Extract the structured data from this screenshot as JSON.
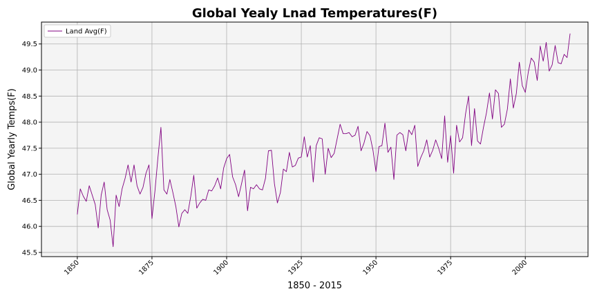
{
  "chart_data": {
    "type": "line",
    "title": "Global Yealy Lnad Temperatures(F)",
    "xlabel": "1850 - 2015",
    "ylabel": "Global Yearly Temps(F)",
    "xlim": [
      1838,
      2021
    ],
    "ylim": [
      45.42,
      49.92
    ],
    "x_ticks": [
      1850,
      1875,
      1900,
      1925,
      1950,
      1975,
      2000
    ],
    "x_tick_labels": [
      "1850",
      "1875",
      "1900",
      "1925",
      "1950",
      "1975",
      "2000"
    ],
    "y_ticks": [
      45.5,
      46.0,
      46.5,
      47.0,
      47.5,
      48.0,
      48.5,
      49.0,
      49.5
    ],
    "y_tick_labels": [
      "45.5",
      "46.0",
      "46.5",
      "47.0",
      "47.5",
      "48.0",
      "48.5",
      "49.0",
      "49.5"
    ],
    "grid": true,
    "legend_position": "top-left",
    "colors": {
      "series": "#800080",
      "plot_background": "#f4f4f4",
      "grid": "#b0b0b0"
    },
    "series": [
      {
        "name": "Land Avg(F)",
        "x": [
          1850,
          1851,
          1852,
          1853,
          1854,
          1855,
          1856,
          1857,
          1858,
          1859,
          1860,
          1861,
          1862,
          1863,
          1864,
          1865,
          1866,
          1867,
          1868,
          1869,
          1870,
          1871,
          1872,
          1873,
          1874,
          1875,
          1876,
          1877,
          1878,
          1879,
          1880,
          1881,
          1882,
          1883,
          1884,
          1885,
          1886,
          1887,
          1888,
          1889,
          1890,
          1891,
          1892,
          1893,
          1894,
          1895,
          1896,
          1897,
          1898,
          1899,
          1900,
          1901,
          1902,
          1903,
          1904,
          1905,
          1906,
          1907,
          1908,
          1909,
          1910,
          1911,
          1912,
          1913,
          1914,
          1915,
          1916,
          1917,
          1918,
          1919,
          1920,
          1921,
          1922,
          1923,
          1924,
          1925,
          1926,
          1927,
          1928,
          1929,
          1930,
          1931,
          1932,
          1933,
          1934,
          1935,
          1936,
          1937,
          1938,
          1939,
          1940,
          1941,
          1942,
          1943,
          1944,
          1945,
          1946,
          1947,
          1948,
          1949,
          1950,
          1951,
          1952,
          1953,
          1954,
          1955,
          1956,
          1957,
          1958,
          1959,
          1960,
          1961,
          1962,
          1963,
          1964,
          1965,
          1966,
          1967,
          1968,
          1969,
          1970,
          1971,
          1972,
          1973,
          1974,
          1975,
          1976,
          1977,
          1978,
          1979,
          1980,
          1981,
          1982,
          1983,
          1984,
          1985,
          1986,
          1987,
          1988,
          1989,
          1990,
          1991,
          1992,
          1993,
          1994,
          1995,
          1996,
          1997,
          1998,
          1999,
          2000,
          2001,
          2002,
          2003,
          2004,
          2005,
          2006,
          2007,
          2008,
          2009,
          2010,
          2011,
          2012,
          2013,
          2014,
          2015
        ],
        "values": [
          46.23,
          46.72,
          46.58,
          46.48,
          46.78,
          46.6,
          46.42,
          45.97,
          46.6,
          46.85,
          46.32,
          46.12,
          45.61,
          46.6,
          46.38,
          46.72,
          46.92,
          47.18,
          46.85,
          47.18,
          46.78,
          46.62,
          46.75,
          47.02,
          47.18,
          46.15,
          46.68,
          47.32,
          47.9,
          46.7,
          46.62,
          46.9,
          46.65,
          46.38,
          45.99,
          46.25,
          46.32,
          46.25,
          46.58,
          46.98,
          46.35,
          46.45,
          46.52,
          46.5,
          46.7,
          46.68,
          46.78,
          46.93,
          46.72,
          47.12,
          47.3,
          47.38,
          46.95,
          46.8,
          46.57,
          46.82,
          47.08,
          46.3,
          46.75,
          46.72,
          46.8,
          46.72,
          46.7,
          46.92,
          47.45,
          47.46,
          46.82,
          46.45,
          46.65,
          47.1,
          47.05,
          47.42,
          47.14,
          47.17,
          47.31,
          47.33,
          47.72,
          47.33,
          47.55,
          46.85,
          47.55,
          47.7,
          47.68,
          47.0,
          47.5,
          47.32,
          47.4,
          47.68,
          47.96,
          47.78,
          47.78,
          47.8,
          47.72,
          47.75,
          47.92,
          47.45,
          47.6,
          47.82,
          47.74,
          47.46,
          47.05,
          47.53,
          47.55,
          47.98,
          47.42,
          47.52,
          46.9,
          47.75,
          47.8,
          47.76,
          47.45,
          47.85,
          47.76,
          47.94,
          47.15,
          47.32,
          47.45,
          47.66,
          47.33,
          47.46,
          47.66,
          47.5,
          47.3,
          48.12,
          47.23,
          47.74,
          47.02,
          47.94,
          47.62,
          47.7,
          48.16,
          48.5,
          47.55,
          48.26,
          47.64,
          47.58,
          47.9,
          48.18,
          48.56,
          48.06,
          48.62,
          48.55,
          47.9,
          47.96,
          48.25,
          48.83,
          48.27,
          48.55,
          49.15,
          48.7,
          48.57,
          48.96,
          49.23,
          49.15,
          48.8,
          49.46,
          49.17,
          49.53,
          48.98,
          49.1,
          49.47,
          49.14,
          49.12,
          49.3,
          49.24,
          49.7
        ]
      }
    ]
  }
}
